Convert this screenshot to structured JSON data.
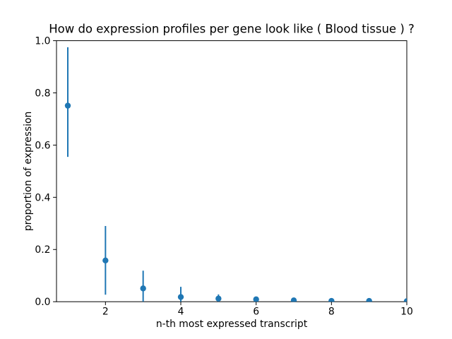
{
  "chart_data": {
    "type": "scatter",
    "subtype": "errorbar",
    "title": "How do expression profiles per gene look like ( Blood tissue ) ?",
    "xlabel": "n-th most expressed transcript",
    "ylabel": "proportion of expression",
    "x": [
      1,
      2,
      3,
      4,
      5,
      6,
      7,
      8,
      9,
      10
    ],
    "y": [
      0.751,
      0.158,
      0.051,
      0.018,
      0.012,
      0.009,
      0.005,
      0.003,
      0.003,
      0.002
    ],
    "err_lower_bound": [
      0.555,
      0.027,
      0.0,
      0.0,
      0.0,
      0.0,
      0.0,
      0.0,
      0.0,
      0.0
    ],
    "err_upper_bound": [
      0.975,
      0.29,
      0.119,
      0.057,
      0.028,
      0.016,
      0.009,
      0.005,
      0.004,
      0.003
    ],
    "xlim": [
      0.7,
      10.0
    ],
    "ylim": [
      0.0,
      1.0
    ],
    "xticks": [
      "2",
      "4",
      "6",
      "8",
      "10"
    ],
    "xtick_values": [
      2,
      4,
      6,
      8,
      10
    ],
    "yticks": [
      "0.0",
      "0.2",
      "0.4",
      "0.6",
      "0.8",
      "1.0"
    ],
    "ytick_values": [
      0.0,
      0.2,
      0.4,
      0.6,
      0.8,
      1.0
    ],
    "grid": false,
    "legend": null,
    "marker_color": "#1f77b4",
    "errorbar_color": "#1f77b4",
    "axis_color": "#000000",
    "background_color": "#ffffff"
  }
}
